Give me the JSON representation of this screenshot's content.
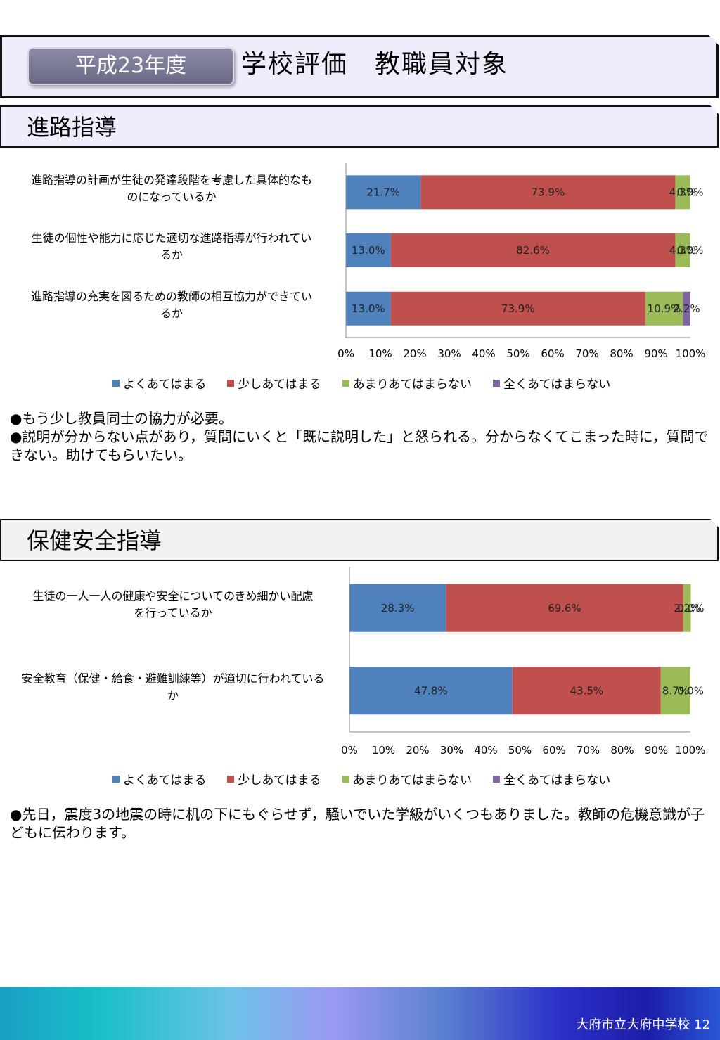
{
  "header": {
    "year_label": "平成23年度",
    "title": "学校評価　教職員対象"
  },
  "colors": {
    "series": [
      "#4f81bd",
      "#c0504d",
      "#9bbb59",
      "#8064a2"
    ],
    "banner_bg": "#f1ecfb",
    "section2_bg": "#f1f1f1"
  },
  "sections": [
    {
      "title": "進路指導",
      "legend": [
        "よくあてはまる",
        "少しあてはまる",
        "あまりあてはまらない",
        "全くあてはまらない"
      ],
      "comments": [
        "●もう少し教員同士の協力が必要。",
        "●説明が分からない点があり，質問にいくと「既に説明した」と怒られる。分からなくてこまった時に，質問できない。助けてもらいたい。"
      ]
    },
    {
      "title": "保健安全指導",
      "legend": [
        "よくあてはまる",
        "少しあてはまる",
        "あまりあてはまらない",
        "全くあてはまらない"
      ],
      "comments": [
        "●先日，震度3の地震の時に机の下にもぐらせず，騒いでいた学級がいくつもありました。教師の危機意識が子どもに伝わります。"
      ]
    }
  ],
  "chart_data": [
    {
      "type": "bar",
      "orientation": "horizontal",
      "stacked": true,
      "categories": [
        [
          "進路指導の計画が生徒の発達段階を考慮した具体的なも",
          "のになっているか"
        ],
        [
          "生徒の個性や能力に応じた適切な進路指導が行われてい",
          "るか"
        ],
        [
          "進路指導の充実を図るための教師の相互協力ができてい",
          "るか"
        ]
      ],
      "series": [
        {
          "name": "よくあてはまる",
          "values": [
            21.7,
            13.0,
            13.0
          ],
          "labels": [
            "21.7%",
            "13.0%",
            "13.0%"
          ]
        },
        {
          "name": "少しあてはまる",
          "values": [
            73.9,
            82.6,
            73.9
          ],
          "labels": [
            "73.9%",
            "82.6%",
            "73.9%"
          ]
        },
        {
          "name": "あまりあてはまらない",
          "values": [
            4.3,
            4.3,
            10.9
          ],
          "labels": [
            "4.3%",
            "4.3%",
            "10.9%"
          ]
        },
        {
          "name": "全くあてはまらない",
          "values": [
            0.0,
            0.0,
            2.2
          ],
          "labels": [
            "0.0%",
            "0.0%",
            "2.2%"
          ]
        }
      ],
      "xticks": [
        "0%",
        "10%",
        "20%",
        "30%",
        "40%",
        "50%",
        "60%",
        "70%",
        "80%",
        "90%",
        "100%"
      ],
      "xlim": [
        0,
        100
      ],
      "legend_position": "bottom"
    },
    {
      "type": "bar",
      "orientation": "horizontal",
      "stacked": true,
      "categories": [
        [
          "生徒の一人一人の健康や安全についてのきめ細かい配慮",
          "を行っているか"
        ],
        [
          "安全教育（保健・給食・避難訓練等）が適切に行われている",
          "か"
        ]
      ],
      "series": [
        {
          "name": "よくあてはまる",
          "values": [
            28.3,
            47.8
          ],
          "labels": [
            "28.3%",
            "47.8%"
          ]
        },
        {
          "name": "少しあてはまる",
          "values": [
            69.6,
            43.5
          ],
          "labels": [
            "69.6%",
            "43.5%"
          ]
        },
        {
          "name": "あまりあてはまらない",
          "values": [
            2.2,
            8.7
          ],
          "labels": [
            "2.2%",
            "8.7%"
          ]
        },
        {
          "name": "全くあてはまらない",
          "values": [
            0.0,
            0.0
          ],
          "labels": [
            "0.0%",
            "0.0%"
          ]
        }
      ],
      "xticks": [
        "0%",
        "10%",
        "20%",
        "30%",
        "40%",
        "50%",
        "60%",
        "70%",
        "80%",
        "90%",
        "100%"
      ],
      "xlim": [
        0,
        100
      ],
      "legend_position": "bottom"
    }
  ],
  "footer": {
    "school": "大府市立大府中学校",
    "page": "12"
  }
}
